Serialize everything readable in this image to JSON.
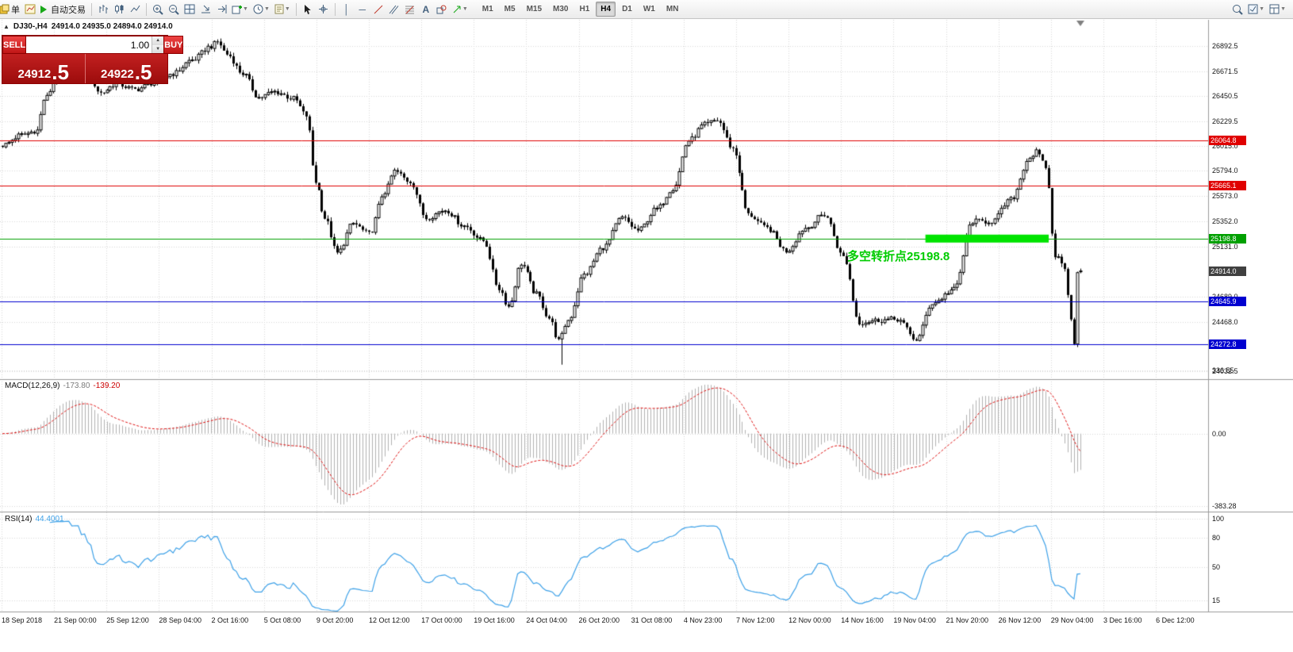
{
  "toolbar": {
    "order_label": "单",
    "autotrade_label": "自动交易",
    "timeframes": [
      "M1",
      "M5",
      "M15",
      "M30",
      "H1",
      "H4",
      "D1",
      "W1",
      "MN"
    ],
    "active_timeframe": "H4"
  },
  "chart_header": {
    "symbol_period": "DJ30-,H4",
    "ohlc": "24914.0 24935.0 24894.0 24914.0"
  },
  "trade_panel": {
    "sell_label": "SELL",
    "buy_label": "BUY",
    "volume": "1.00",
    "sell_price_main": "24912",
    "sell_price_frac": ".5",
    "buy_price_main": "24922",
    "buy_price_frac": ".5"
  },
  "price_scale_labels": [
    "26892.5",
    "26671.5",
    "26450.5",
    "26229.5",
    "26015.0",
    "25794.0",
    "25573.0",
    "25352.0",
    "25131.0",
    "24689.0",
    "24468.0",
    "24032.5"
  ],
  "price_markers": [
    {
      "value": 26064.8,
      "label": "26064.8",
      "color": "#e00000",
      "kind": "resistance-line-1"
    },
    {
      "value": 25665.1,
      "label": "25665.1",
      "color": "#e00000",
      "kind": "resistance-line-2"
    },
    {
      "value": 25198.8,
      "label": "25198.8",
      "color": "#00a000",
      "kind": "pivot-line"
    },
    {
      "value": 24914.0,
      "label": "24914.0",
      "color": "#404040",
      "kind": "current-price"
    },
    {
      "value": 24645.9,
      "label": "24645.9",
      "color": "#0000d0",
      "kind": "support-line-1"
    },
    {
      "value": 24272.8,
      "label": "24272.8",
      "color": "#0000d0",
      "kind": "support-line-2"
    }
  ],
  "annotation": {
    "text": "多空转折点25198.8",
    "color": "#00cc00"
  },
  "highlight_zone": {
    "price": 25198.8,
    "color": "#00e400",
    "bar_start": 292,
    "bar_end": 331
  },
  "time_axis_labels": [
    "18 Sep 2018",
    "21 Sep 00:00",
    "25 Sep 12:00",
    "28 Sep 04:00",
    "2 Oct 16:00",
    "5 Oct 08:00",
    "9 Oct 20:00",
    "12 Oct 12:00",
    "17 Oct 00:00",
    "19 Oct 16:00",
    "24 Oct 04:00",
    "26 Oct 20:00",
    "31 Oct 08:00",
    "4 Nov 23:00",
    "7 Nov 12:00",
    "12 Nov 00:00",
    "14 Nov 16:00",
    "19 Nov 04:00",
    "21 Nov 20:00",
    "26 Nov 12:00",
    "29 Nov 04:00",
    "3 Dec 16:00",
    "6 Dec 12:00"
  ],
  "macd_panel": {
    "label": "MACD(12,26,9)",
    "main_value": "-173.80",
    "signal_value": "-139.20",
    "scale_labels": [
      "336.55",
      "0.00",
      "-383.28"
    ],
    "histogram_color": "#b2b2b2",
    "signal_color": "#e01010"
  },
  "rsi_panel": {
    "label": "RSI(14)",
    "value": "44.4001",
    "scale_labels": [
      "100",
      "80",
      "50",
      "15"
    ],
    "line_color": "#3da1e8"
  },
  "chart_data": {
    "type": "candlestick",
    "symbol": "DJ30-",
    "timeframe": "H4",
    "bars_total": 342,
    "current_bar": {
      "open": 24914.0,
      "high": 24935.0,
      "low": 24894.0,
      "close": 24914.0
    },
    "visible_price_range": [
      24032.5,
      26892.5
    ],
    "price_keyframes": [
      [
        0,
        26020
      ],
      [
        6,
        26110
      ],
      [
        11,
        26150
      ],
      [
        13,
        26420
      ],
      [
        18,
        26650
      ],
      [
        22,
        26730
      ],
      [
        26,
        26690
      ],
      [
        31,
        26480
      ],
      [
        36,
        26560
      ],
      [
        42,
        26510
      ],
      [
        48,
        26570
      ],
      [
        54,
        26650
      ],
      [
        60,
        26770
      ],
      [
        66,
        26890
      ],
      [
        68,
        26930
      ],
      [
        71,
        26820
      ],
      [
        76,
        26650
      ],
      [
        81,
        26440
      ],
      [
        86,
        26490
      ],
      [
        92,
        26430
      ],
      [
        96,
        26280
      ],
      [
        99,
        25700
      ],
      [
        102,
        25380
      ],
      [
        106,
        25070
      ],
      [
        111,
        25330
      ],
      [
        116,
        25240
      ],
      [
        121,
        25610
      ],
      [
        124,
        25790
      ],
      [
        129,
        25700
      ],
      [
        134,
        25380
      ],
      [
        140,
        25450
      ],
      [
        146,
        25310
      ],
      [
        152,
        25180
      ],
      [
        157,
        24760
      ],
      [
        160,
        24600
      ],
      [
        164,
        24980
      ],
      [
        169,
        24710
      ],
      [
        173,
        24500
      ],
      [
        176,
        24300
      ],
      [
        179,
        24480
      ],
      [
        184,
        24880
      ],
      [
        190,
        25120
      ],
      [
        196,
        25380
      ],
      [
        201,
        25270
      ],
      [
        207,
        25460
      ],
      [
        212,
        25640
      ],
      [
        217,
        26060
      ],
      [
        222,
        26200
      ],
      [
        226,
        26240
      ],
      [
        231,
        25990
      ],
      [
        236,
        25410
      ],
      [
        242,
        25290
      ],
      [
        248,
        25090
      ],
      [
        254,
        25290
      ],
      [
        260,
        25410
      ],
      [
        266,
        25040
      ],
      [
        271,
        24460
      ],
      [
        277,
        24480
      ],
      [
        283,
        24490
      ],
      [
        289,
        24310
      ],
      [
        294,
        24630
      ],
      [
        301,
        24750
      ],
      [
        307,
        25350
      ],
      [
        313,
        25350
      ],
      [
        319,
        25540
      ],
      [
        325,
        25910
      ],
      [
        327,
        25960
      ],
      [
        330,
        25830
      ],
      [
        333,
        25050
      ],
      [
        336,
        24950
      ],
      [
        338,
        24490
      ],
      [
        339,
        24290
      ],
      [
        340,
        24890
      ],
      [
        341,
        24914
      ]
    ],
    "notable_extremes": {
      "highs": [
        [
          68,
          26951
        ]
      ],
      "lows": [
        [
          177,
          24090
        ],
        [
          340,
          24245
        ]
      ]
    }
  }
}
